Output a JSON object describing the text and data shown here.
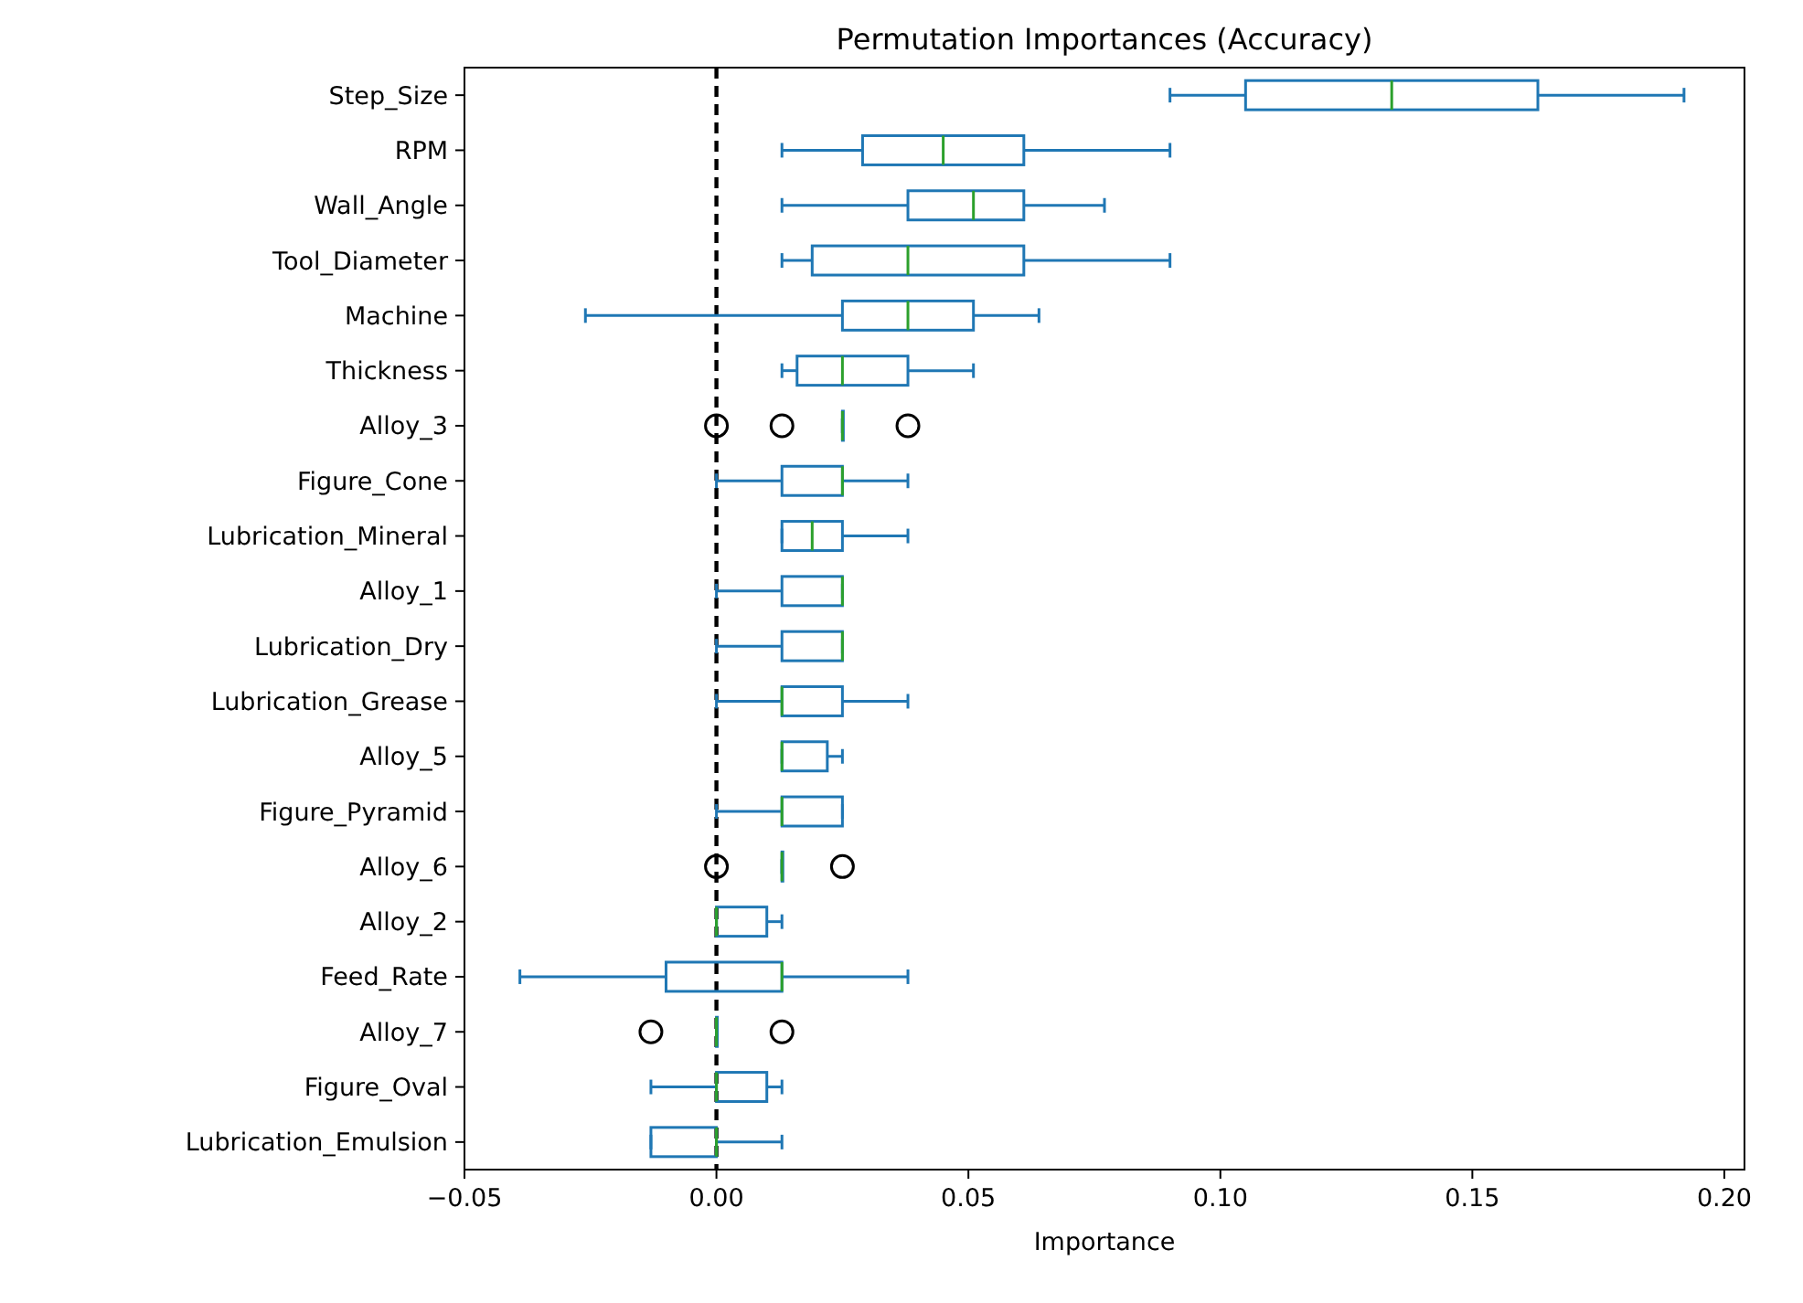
{
  "chart_data": {
    "type": "box",
    "title": "Permutation Importances (Accuracy)",
    "xlabel": "Importance",
    "orientation": "horizontal",
    "grid": false,
    "categories": [
      "Step_Size",
      "RPM",
      "Wall_Angle",
      "Tool_Diameter",
      "Machine",
      "Thickness",
      "Alloy_3",
      "Figure_Cone",
      "Lubrication_Mineral",
      "Alloy_1",
      "Lubrication_Dry",
      "Lubrication_Grease",
      "Alloy_5",
      "Figure_Pyramid",
      "Alloy_6",
      "Alloy_2",
      "Feed_Rate",
      "Alloy_7",
      "Figure_Oval",
      "Lubrication_Emulsion"
    ],
    "xlim": [
      -0.05,
      0.204
    ],
    "xticks": [
      {
        "value": -0.05,
        "label": "−0.05"
      },
      {
        "value": 0,
        "label": "0.00"
      },
      {
        "value": 0.05,
        "label": "0.05"
      },
      {
        "value": 0.1,
        "label": "0.10"
      },
      {
        "value": 0.15,
        "label": "0.15"
      },
      {
        "value": 0.2,
        "label": "0.20"
      }
    ],
    "series": [
      {
        "color": "#1f77b4",
        "boxes": [
          {
            "low": 0.09,
            "q1": 0.105,
            "median": 0.134,
            "q3": 0.163,
            "high": 0.192
          },
          {
            "low": 0.013,
            "q1": 0.029,
            "median": 0.045,
            "q3": 0.061,
            "high": 0.09
          },
          {
            "low": 0.013,
            "q1": 0.038,
            "median": 0.051,
            "q3": 0.061,
            "high": 0.077
          },
          {
            "low": 0.013,
            "q1": 0.019,
            "median": 0.038,
            "q3": 0.061,
            "high": 0.09
          },
          {
            "low": -0.026,
            "q1": 0.025,
            "median": 0.038,
            "q3": 0.051,
            "high": 0.064
          },
          {
            "low": 0.013,
            "q1": 0.016,
            "median": 0.025,
            "q3": 0.038,
            "high": 0.051
          },
          {
            "low": 0.025,
            "q1": 0.025,
            "median": 0.025,
            "q3": 0.025,
            "high": 0.025,
            "outliers": [
              0,
              0.013,
              0.038
            ]
          },
          {
            "low": 0,
            "q1": 0.013,
            "median": 0.025,
            "q3": 0.025,
            "high": 0.038
          },
          {
            "low": 0.013,
            "q1": 0.013,
            "median": 0.019,
            "q3": 0.025,
            "high": 0.038
          },
          {
            "low": 0,
            "q1": 0.013,
            "median": 0.025,
            "q3": 0.025,
            "high": 0.025
          },
          {
            "low": 0,
            "q1": 0.013,
            "median": 0.025,
            "q3": 0.025,
            "high": 0.025
          },
          {
            "low": 0,
            "q1": 0.013,
            "median": 0.013,
            "q3": 0.025,
            "high": 0.038
          },
          {
            "low": 0.013,
            "q1": 0.013,
            "median": 0.013,
            "q3": 0.022,
            "high": 0.025
          },
          {
            "low": 0,
            "q1": 0.013,
            "median": 0.013,
            "q3": 0.025,
            "high": 0.025
          },
          {
            "low": 0.013,
            "q1": 0.013,
            "median": 0.013,
            "q3": 0.013,
            "high": 0.013,
            "outliers": [
              0,
              0.025
            ]
          },
          {
            "low": 0,
            "q1": 0,
            "median": 0,
            "q3": 0.01,
            "high": 0.013
          },
          {
            "low": -0.039,
            "q1": -0.01,
            "median": 0.013,
            "q3": 0.013,
            "high": 0.038
          },
          {
            "low": 0,
            "q1": 0,
            "median": 0,
            "q3": 0,
            "high": 0,
            "outliers": [
              -0.013,
              0.013
            ]
          },
          {
            "low": -0.013,
            "q1": 0,
            "median": 0,
            "q3": 0.01,
            "high": 0.013
          },
          {
            "low": -0.013,
            "q1": -0.013,
            "median": 0,
            "q3": 0,
            "high": 0.013
          }
        ]
      }
    ],
    "ref_lines": [
      {
        "axis": "x",
        "value": 0,
        "color": "#000000",
        "line_style": "dashed"
      }
    ]
  }
}
